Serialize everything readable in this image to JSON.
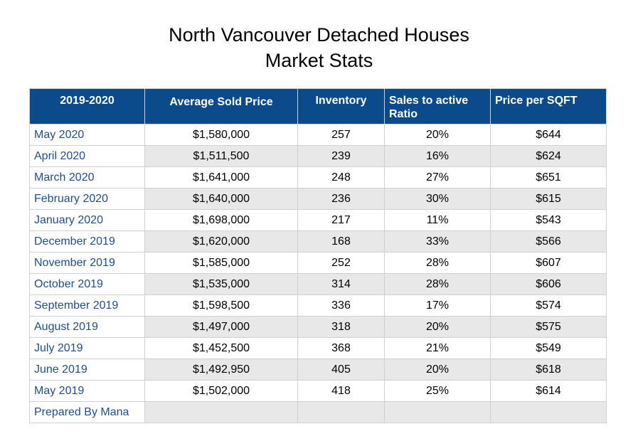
{
  "title": {
    "line1": "North Vancouver Detached Houses",
    "line2": "Market Stats"
  },
  "table": {
    "headers": [
      "2019-2020",
      "Average Sold Price",
      "Inventory",
      "Sales to active Ratio",
      "Price per SQFT"
    ],
    "rows": [
      {
        "month": "May 2020",
        "avg_price": "$1,580,000",
        "inventory": "257",
        "ratio": "20%",
        "ppsf": "$644"
      },
      {
        "month": "April 2020",
        "avg_price": "$1,511,500",
        "inventory": "239",
        "ratio": "16%",
        "ppsf": "$624"
      },
      {
        "month": "March 2020",
        "avg_price": "$1,641,000",
        "inventory": "248",
        "ratio": "27%",
        "ppsf": "$651"
      },
      {
        "month": "February 2020",
        "avg_price": "$1,640,000",
        "inventory": "236",
        "ratio": "30%",
        "ppsf": "$615"
      },
      {
        "month": "January 2020",
        "avg_price": "$1,698,000",
        "inventory": "217",
        "ratio": "11%",
        "ppsf": "$543"
      },
      {
        "month": "December 2019",
        "avg_price": "$1,620,000",
        "inventory": "168",
        "ratio": "33%",
        "ppsf": "$566"
      },
      {
        "month": "November 2019",
        "avg_price": "$1,585,000",
        "inventory": "252",
        "ratio": "28%",
        "ppsf": "$607"
      },
      {
        "month": "October 2019",
        "avg_price": "$1,535,000",
        "inventory": "314",
        "ratio": "28%",
        "ppsf": "$606"
      },
      {
        "month": "September 2019",
        "avg_price": "$1,598,500",
        "inventory": "336",
        "ratio": "17%",
        "ppsf": "$574"
      },
      {
        "month": "August 2019",
        "avg_price": "$1,497,000",
        "inventory": "318",
        "ratio": "20%",
        "ppsf": "$575"
      },
      {
        "month": "July 2019",
        "avg_price": "$1,452,500",
        "inventory": "368",
        "ratio": "21%",
        "ppsf": "$549"
      },
      {
        "month": "June 2019",
        "avg_price": "$1,492,950",
        "inventory": "405",
        "ratio": "20%",
        "ppsf": "$618"
      },
      {
        "month": "May 2019",
        "avg_price": "$1,502,000",
        "inventory": "418",
        "ratio": "25%",
        "ppsf": "$614"
      }
    ],
    "footer": {
      "label": "Prepared By Mana"
    }
  },
  "colors": {
    "header_bg": "#0b4a8b",
    "month_text": "#1f4e8c",
    "alt_row_bg": "#e8e8e8"
  }
}
